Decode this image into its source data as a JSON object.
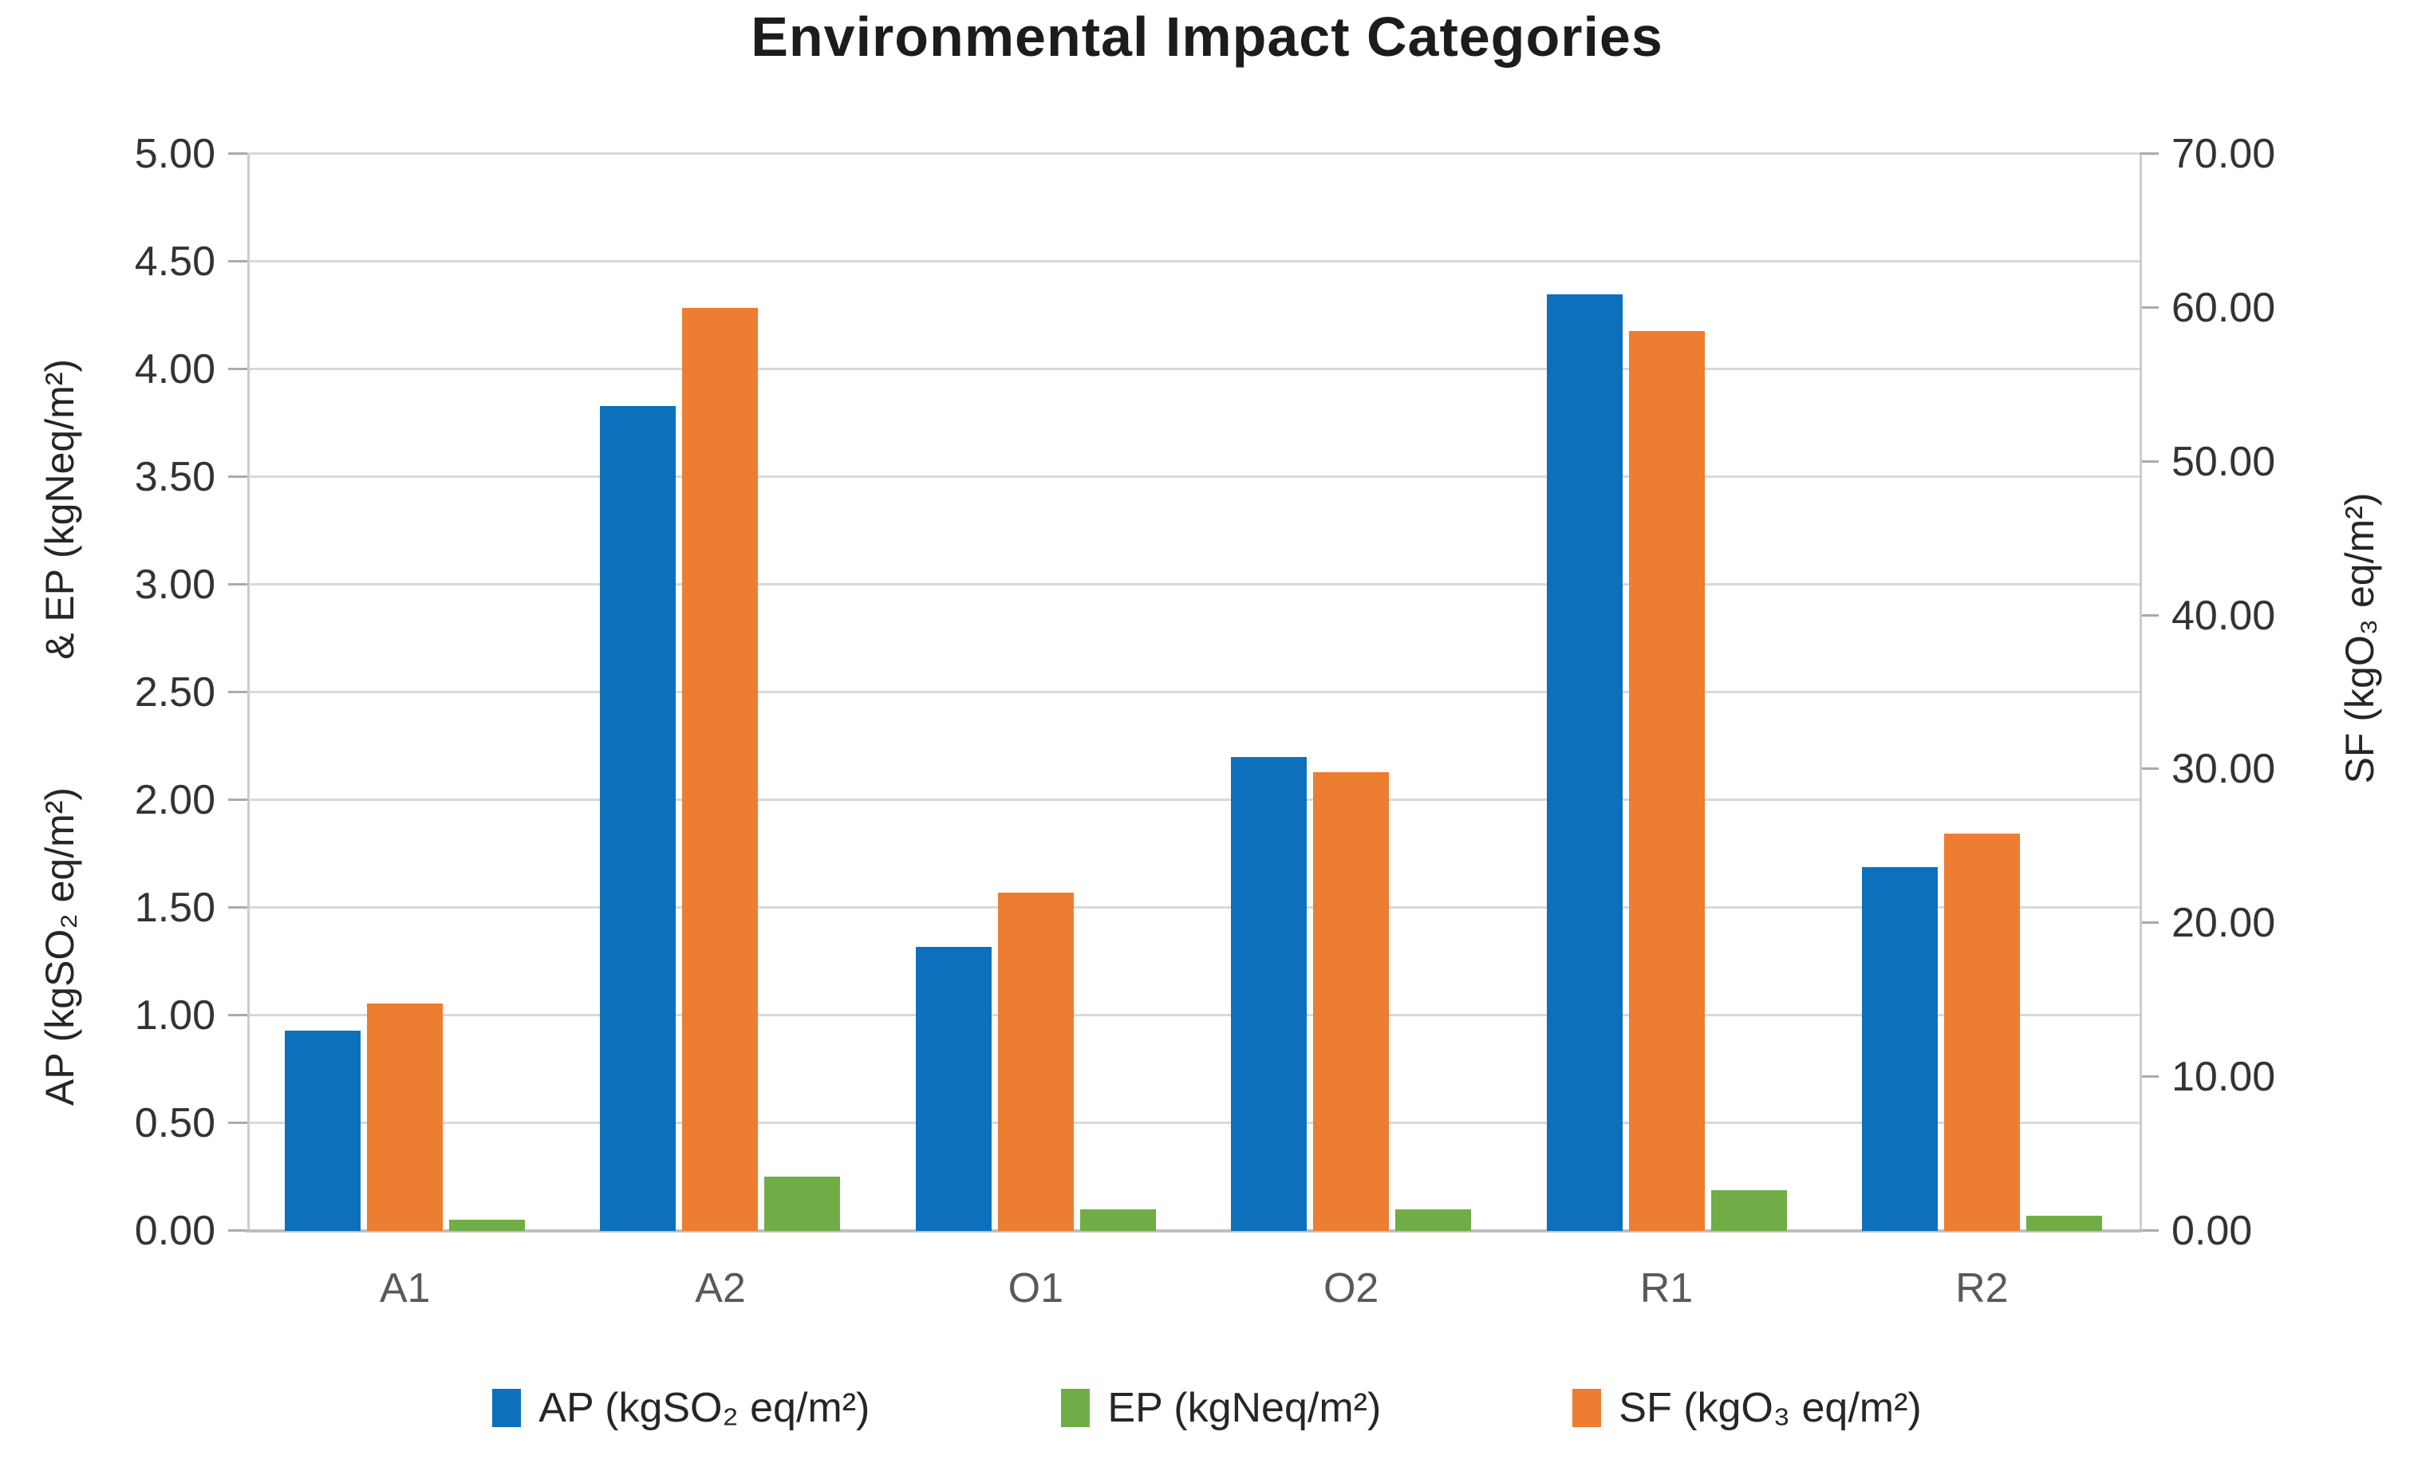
{
  "chart_data": {
    "type": "bar",
    "title": "Environmental Impact Categories",
    "categories": [
      "A1",
      "A2",
      "O1",
      "O2",
      "R1",
      "R2"
    ],
    "series": [
      {
        "name": "AP (kgSO₂ eq/m²)",
        "color": "#0d70bc",
        "axis": "left",
        "values": [
          0.93,
          3.83,
          1.32,
          2.2,
          4.35,
          1.69
        ]
      },
      {
        "name": "SF (kgO₃ eq/m²)",
        "color": "#ed7d31",
        "axis": "right",
        "values": [
          14.8,
          60.0,
          22.0,
          29.8,
          58.5,
          25.8
        ]
      },
      {
        "name": "EP (kgNeq/m²)",
        "color": "#70ad47",
        "axis": "left",
        "values": [
          0.05,
          0.25,
          0.1,
          0.1,
          0.19,
          0.07
        ]
      }
    ],
    "left_axis": {
      "label_part1": "AP (kgSO₂ eq/m²)",
      "label_part2": "& EP (kgNeq/m²)",
      "min": 0,
      "max": 5,
      "step": 0.5,
      "ticks": [
        "5.00",
        "4.50",
        "4.00",
        "3.50",
        "3.00",
        "2.50",
        "2.00",
        "1.50",
        "1.00",
        "0.50",
        "0.00"
      ]
    },
    "right_axis": {
      "label": "SF (kgO₃ eq/m²)",
      "min": 0,
      "max": 70,
      "step": 10,
      "ticks": [
        "70.00",
        "60.00",
        "50.00",
        "40.00",
        "30.00",
        "20.00",
        "10.00",
        "0.00"
      ]
    },
    "legend": {
      "position": "bottom",
      "items": [
        {
          "label": "AP (kgSO₂ eq/m²)",
          "color": "#0d70bc"
        },
        {
          "label": "EP (kgNeq/m²)",
          "color": "#70ad47"
        },
        {
          "label": "SF (kgO₃ eq/m²)",
          "color": "#ed7d31"
        }
      ]
    },
    "grid": true,
    "colors": {
      "gridline": "#d9d9d9",
      "axis_line": "#bfbfbf",
      "tick_text": "#333333",
      "category_text": "#595959",
      "title_text": "#1c1c1c"
    }
  }
}
